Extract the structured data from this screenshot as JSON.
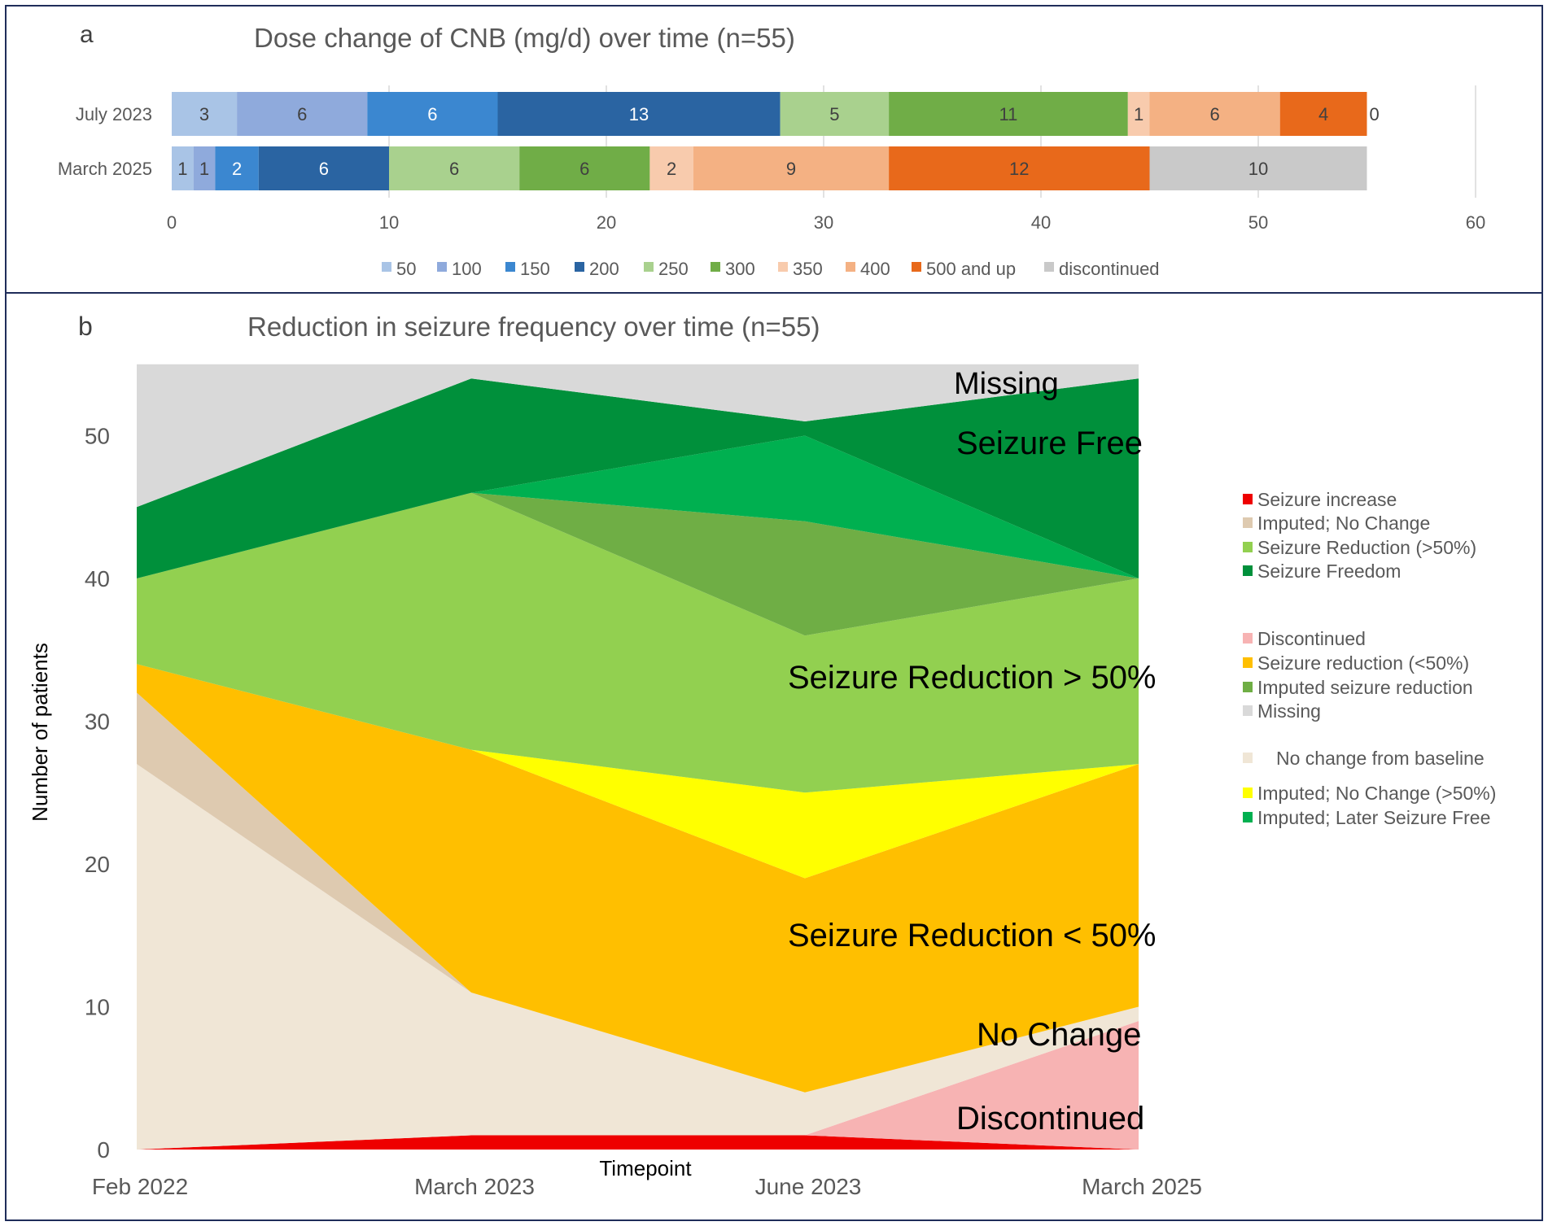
{
  "figure": {
    "panel_a": {
      "letter": "a",
      "title": "Dose change of CNB (mg/d) over time (n=55)"
    },
    "panel_b": {
      "letter": "b",
      "title": "Reduction in seizure frequency over time (n=55)"
    }
  },
  "chart_data": [
    {
      "type": "bar",
      "orientation": "horizontal",
      "stacked": true,
      "title": "Dose change of CNB (mg/d) over time (n=55)",
      "categories": [
        "July 2023",
        "March 2025"
      ],
      "xlim": [
        0,
        60
      ],
      "xticks": [
        0,
        10,
        20,
        30,
        40,
        50,
        60
      ],
      "grid": true,
      "legend_position": "bottom",
      "series": [
        {
          "name": "50",
          "color": "#A9C4E6",
          "values": [
            3,
            1
          ]
        },
        {
          "name": "100",
          "color": "#8FAADC",
          "values": [
            6,
            1
          ]
        },
        {
          "name": "150",
          "color": "#3B87D0",
          "values": [
            6,
            2
          ]
        },
        {
          "name": "200",
          "color": "#2A64A2",
          "values": [
            13,
            6
          ]
        },
        {
          "name": "250",
          "color": "#A9D18E",
          "values": [
            5,
            6
          ]
        },
        {
          "name": "300",
          "color": "#70AD47",
          "values": [
            11,
            6
          ]
        },
        {
          "name": "350",
          "color": "#F8CBAD",
          "values": [
            1,
            2
          ]
        },
        {
          "name": "400",
          "color": "#F4B183",
          "values": [
            6,
            9
          ]
        },
        {
          "name": "500 and up",
          "color": "#E8691B",
          "values": [
            4,
            12
          ]
        },
        {
          "name": "discontinued",
          "color": "#C9C9C9",
          "values": [
            0,
            10
          ]
        }
      ]
    },
    {
      "type": "area",
      "stacked": true,
      "title": "Reduction in seizure frequency over time (n=55)",
      "xlabel": "Timepoint",
      "ylabel": "Number of patients",
      "x": [
        "Feb 2022",
        "March 2023",
        "June 2023",
        "March 2025"
      ],
      "ylim": [
        0,
        55
      ],
      "yticks": [
        0,
        10,
        20,
        30,
        40,
        50
      ],
      "series": [
        {
          "name": "Seizure increase",
          "color": "#EE0000",
          "values": [
            0,
            1,
            1,
            0
          ]
        },
        {
          "name": "Discontinued",
          "color": "#F7B3B3",
          "values": [
            0,
            0,
            0,
            9
          ]
        },
        {
          "name": "No change from baseline",
          "color": "#F0E6D6",
          "values": [
            27,
            10,
            3,
            1
          ]
        },
        {
          "name": "Imputed; No Change",
          "color": "#DECAB0",
          "values": [
            5,
            0,
            0,
            0
          ]
        },
        {
          "name": "Seizure reduction (<50%)",
          "color": "#FFBF00",
          "values": [
            2,
            17,
            15,
            17
          ]
        },
        {
          "name": "Imputed; No Change (>50%)",
          "color": "#FFFF00",
          "values": [
            0,
            0,
            6,
            0
          ]
        },
        {
          "name": "Seizure Reduction (>50%)",
          "color": "#92D050",
          "values": [
            6,
            18,
            11,
            13
          ]
        },
        {
          "name": "Imputed seizure reduction",
          "color": "#6FAE45",
          "values": [
            0,
            0,
            8,
            0
          ]
        },
        {
          "name": "Imputed; Later Seizure Free",
          "color": "#00B050",
          "values": [
            0,
            0,
            6,
            0
          ]
        },
        {
          "name": "Seizure Freedom",
          "color": "#00903B",
          "values": [
            5,
            8,
            1,
            14
          ]
        },
        {
          "name": "Missing",
          "color": "#D9D9D9",
          "values": [
            10,
            1,
            4,
            1
          ]
        }
      ],
      "annotations": [
        "Missing",
        "Seizure Free",
        "Seizure Reduction > 50%",
        "Seizure Reduction < 50%",
        "No Change",
        "Discontinued"
      ],
      "legend": [
        {
          "label": "Seizure increase",
          "color": "#EE0000"
        },
        {
          "label": "Imputed; No Change",
          "color": "#DECAB0"
        },
        {
          "label": "Seizure Reduction (>50%)",
          "color": "#92D050"
        },
        {
          "label": "Seizure Freedom",
          "color": "#00903B"
        },
        {
          "label": "Discontinued",
          "color": "#F7B3B3"
        },
        {
          "label": "Seizure reduction (<50%)",
          "color": "#FFBF00"
        },
        {
          "label": "Imputed seizure reduction",
          "color": "#6FAE45"
        },
        {
          "label": "Missing",
          "color": "#D9D9D9"
        },
        {
          "label": "No change from baseline",
          "color": "#F0E6D6"
        },
        {
          "label": "Imputed; No Change (>50%)",
          "color": "#FFFF00"
        },
        {
          "label": "Imputed; Later Seizure Free",
          "color": "#00B050"
        }
      ]
    }
  ]
}
